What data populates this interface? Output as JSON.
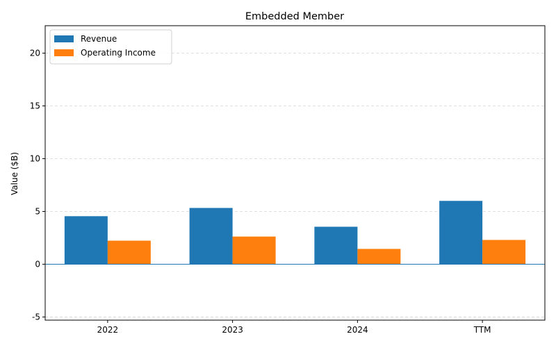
{
  "chart_data": {
    "type": "bar",
    "title": "Embedded Member",
    "xlabel": "",
    "ylabel": "Value ($B)",
    "categories": [
      "2022",
      "2023",
      "2024",
      "TTM"
    ],
    "series": [
      {
        "name": "Revenue",
        "values": [
          4.55,
          5.33,
          3.55,
          6.0
        ],
        "color": "#1f77b4"
      },
      {
        "name": "Operating Income",
        "values": [
          2.23,
          2.62,
          1.45,
          2.3
        ],
        "color": "#ff7f0e"
      }
    ],
    "ylim": [
      -5.3,
      22.6
    ],
    "yticks": [
      -5,
      0,
      5,
      10,
      15,
      20
    ],
    "grid": true,
    "legend": "top-left",
    "zero_line_color": "#1f77b4"
  }
}
